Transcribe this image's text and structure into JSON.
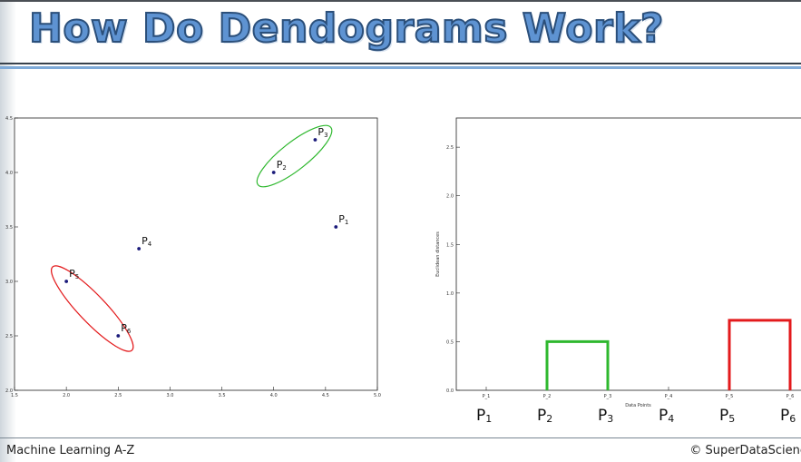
{
  "header": {
    "title": "How Do Dendograms Work?"
  },
  "footer": {
    "left": "Machine Learning A-Z",
    "right": "© SuperDataScience"
  },
  "colors": {
    "cluster_a": "#2eb82e",
    "cluster_b": "#e31a1c",
    "point": "#1a1a7a",
    "title": "#5e93d2"
  },
  "chart_data": [
    {
      "type": "scatter",
      "xlim": [
        1.5,
        5.0
      ],
      "ylim": [
        2.0,
        4.5
      ],
      "xticks": [
        "1.5",
        "2.0",
        "2.5",
        "3.0",
        "3.5",
        "4.0",
        "4.5",
        "5.0"
      ],
      "yticks": [
        "2.0",
        "2.5",
        "3.0",
        "3.5",
        "4.0",
        "4.5"
      ],
      "grid": false,
      "points": [
        {
          "name": "P",
          "sub": "1",
          "x": 4.6,
          "y": 3.5
        },
        {
          "name": "P",
          "sub": "2",
          "x": 4.0,
          "y": 4.0
        },
        {
          "name": "P",
          "sub": "3",
          "x": 4.4,
          "y": 4.3
        },
        {
          "name": "P",
          "sub": "4",
          "x": 2.7,
          "y": 3.3
        },
        {
          "name": "P",
          "sub": "5",
          "x": 2.0,
          "y": 3.0
        },
        {
          "name": "P",
          "sub": "6",
          "x": 2.5,
          "y": 2.5
        }
      ],
      "clusters": [
        {
          "members": [
            "P2",
            "P3"
          ],
          "color": "#2eb82e"
        },
        {
          "members": [
            "P5",
            "P6"
          ],
          "color": "#e31a1c"
        }
      ]
    },
    {
      "type": "dendrogram",
      "xlabel": "Data Points",
      "ylabel": "Euclidean distances",
      "ylim": [
        0.0,
        2.8
      ],
      "yticks": [
        "0.0",
        "0.5",
        "1.0",
        "1.5",
        "2.0",
        "2.5"
      ],
      "grid": false,
      "categories": [
        "P_1",
        "P_2",
        "P_3",
        "P_4",
        "P_5",
        "P_6"
      ],
      "big_labels": [
        {
          "name": "P",
          "sub": "1"
        },
        {
          "name": "P",
          "sub": "2"
        },
        {
          "name": "P",
          "sub": "3"
        },
        {
          "name": "P",
          "sub": "4"
        },
        {
          "name": "P",
          "sub": "5"
        },
        {
          "name": "P",
          "sub": "6"
        }
      ],
      "links": [
        {
          "left": "P_2",
          "right": "P_3",
          "height": 0.5,
          "color": "#2eb82e"
        },
        {
          "left": "P_5",
          "right": "P_6",
          "height": 0.72,
          "color": "#e31a1c"
        }
      ]
    }
  ]
}
